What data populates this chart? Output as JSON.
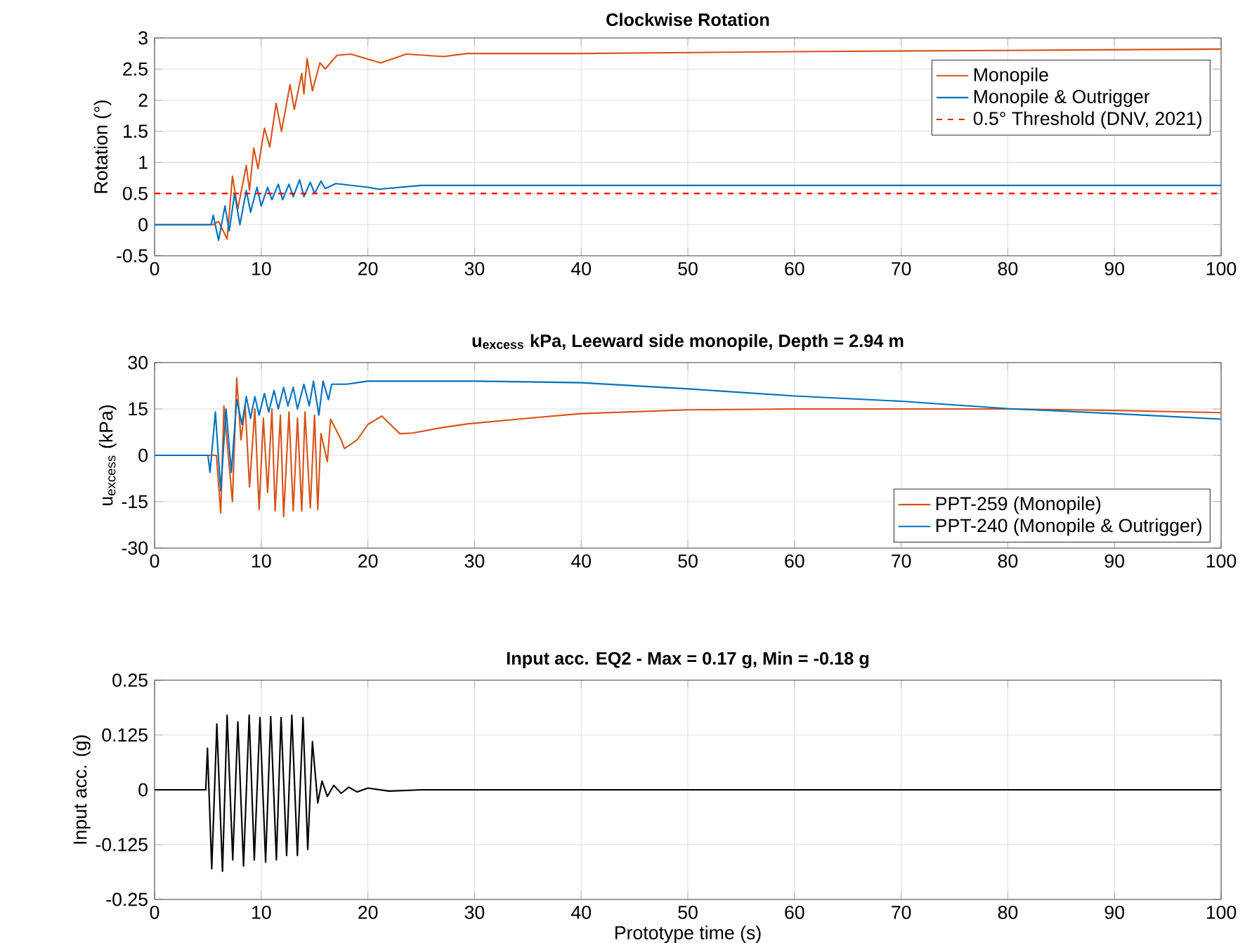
{
  "chart_data": [
    {
      "type": "line",
      "title": "Clockwise Rotation",
      "ylabel": "Rotation (°)",
      "xlim": [
        0,
        100
      ],
      "ylim": [
        -0.5,
        3
      ],
      "xticks": [
        0,
        10,
        20,
        30,
        40,
        50,
        60,
        70,
        80,
        90,
        100
      ],
      "yticks": [
        -0.5,
        0,
        0.5,
        1,
        1.5,
        2,
        2.5,
        3
      ],
      "grid": true,
      "legend": "top right",
      "series": [
        {
          "name": "Monopile",
          "color": "#d95319",
          "x": [
            0,
            5.5,
            6.0,
            6.8,
            7.3,
            7.8,
            8.6,
            8.9,
            9.3,
            9.7,
            10.3,
            10.8,
            11.4,
            11.9,
            12.7,
            13.1,
            13.8,
            14.0,
            14.3,
            14.8,
            15.5,
            16.0,
            17.1,
            18.4,
            21.2,
            23.6,
            27.1,
            29.3,
            40,
            60,
            80,
            100
          ],
          "values": [
            0,
            0,
            0.05,
            -0.23,
            0.78,
            0.25,
            0.95,
            0.55,
            1.23,
            0.9,
            1.55,
            1.25,
            1.95,
            1.5,
            2.25,
            1.85,
            2.43,
            2.1,
            2.67,
            2.15,
            2.6,
            2.5,
            2.72,
            2.74,
            2.6,
            2.74,
            2.7,
            2.75,
            2.75,
            2.78,
            2.8,
            2.82
          ]
        },
        {
          "name": "Monopile & Outrigger",
          "color": "#0072bd",
          "x": [
            0,
            5.3,
            5.5,
            6.0,
            6.6,
            7.0,
            7.5,
            8.0,
            8.6,
            9.0,
            9.6,
            10.0,
            10.6,
            11.0,
            11.6,
            12.0,
            12.6,
            13.0,
            13.6,
            14.0,
            14.6,
            15.0,
            15.6,
            16.0,
            17.0,
            20,
            21,
            25,
            100
          ],
          "values": [
            0,
            0,
            0.15,
            -0.25,
            0.3,
            -0.1,
            0.5,
            0.0,
            0.55,
            0.2,
            0.6,
            0.3,
            0.6,
            0.4,
            0.65,
            0.4,
            0.65,
            0.45,
            0.72,
            0.45,
            0.68,
            0.5,
            0.7,
            0.58,
            0.66,
            0.6,
            0.57,
            0.63,
            0.63
          ]
        }
      ],
      "ref_lines": [
        {
          "axis": "y",
          "value": 0.5,
          "label": "0.5° Threshold (DNV, 2021)",
          "color": "#ff0000",
          "line_style": "dashed"
        }
      ]
    },
    {
      "type": "line",
      "title": "**u$_{excess}$** kPa, Leeward side monopile, Depth = 2.94 m",
      "ylabel": "u$_{excess}$ (kPa)",
      "xlim": [
        0,
        100
      ],
      "ylim": [
        -30,
        30
      ],
      "xticks": [
        0,
        10,
        20,
        30,
        40,
        50,
        60,
        70,
        80,
        90,
        100
      ],
      "yticks": [
        -30,
        -15,
        0,
        15,
        30
      ],
      "grid": true,
      "legend": "bottom right",
      "series": [
        {
          "name": "PPT-259 (Monopile)",
          "color": "#d95319",
          "x": [
            0,
            5.8,
            6.2,
            6.5,
            7.3,
            7.7,
            8.1,
            8.5,
            8.9,
            9.4,
            9.8,
            10.2,
            10.6,
            11.0,
            11.3,
            11.8,
            12.1,
            12.6,
            13.0,
            13.4,
            13.8,
            14.1,
            14.6,
            15.0,
            15.3,
            15.6,
            16.2,
            16.5,
            17.5,
            17.8,
            19,
            20,
            21.3,
            23,
            24.2,
            27,
            29.4,
            35,
            40,
            50,
            60,
            70,
            80,
            90,
            100
          ],
          "values": [
            0,
            0,
            -18.7,
            16,
            -15,
            25,
            5,
            16,
            -10.3,
            15,
            -17.5,
            12,
            -12,
            15,
            -18,
            13,
            -19.8,
            14,
            -18,
            12,
            -18,
            14,
            -17,
            13,
            -17.5,
            7,
            -2,
            11.7,
            5,
            2.2,
            5,
            10,
            12.7,
            7,
            7.2,
            9,
            10.2,
            12,
            13.5,
            14.7,
            15,
            15,
            15,
            14.5,
            13.8
          ]
        },
        {
          "name": "PPT-240 (Monopile & Outrigger)",
          "color": "#0072bd",
          "x": [
            0,
            5.0,
            5.2,
            5.7,
            6.2,
            6.7,
            7.2,
            7.7,
            8.2,
            8.6,
            9.0,
            9.4,
            9.8,
            10.3,
            10.7,
            11.2,
            11.6,
            12.1,
            12.5,
            13.0,
            13.4,
            14.0,
            14.5,
            14.9,
            15.4,
            15.8,
            16.3,
            16.6,
            18,
            20,
            30,
            40,
            50,
            60,
            70,
            80,
            90,
            100
          ],
          "values": [
            0,
            0,
            -5.5,
            14,
            -11.5,
            15,
            -5.5,
            18,
            10,
            19,
            12,
            19,
            13,
            20,
            14,
            21,
            15,
            22,
            16,
            22,
            15,
            23,
            16,
            24,
            13,
            24,
            18,
            23,
            23,
            24,
            24,
            23.5,
            21.5,
            19.2,
            17.5,
            15.1,
            13.5,
            11.7
          ]
        }
      ]
    },
    {
      "type": "line",
      "title": "Input acc. EQ2 - Max = 0.17 g, Min = -0.18 g",
      "xlabel": "Prototype time (s)",
      "ylabel": "Input acc. (g)",
      "xlim": [
        0,
        100
      ],
      "ylim": [
        -0.25,
        0.25
      ],
      "xticks": [
        0,
        10,
        20,
        30,
        40,
        50,
        60,
        70,
        80,
        90,
        100
      ],
      "yticks": [
        -0.25,
        -0.125,
        0,
        0.125,
        0.25
      ],
      "grid": true,
      "series": [
        {
          "color": "#000000",
          "x": [
            0,
            4.8,
            4.96,
            5.36,
            5.84,
            6.37,
            6.8,
            7.33,
            7.81,
            8.34,
            8.87,
            9.35,
            9.88,
            10.41,
            10.89,
            11.42,
            11.86,
            12.38,
            12.87,
            13.39,
            13.92,
            14.36,
            14.8,
            15.3,
            15.7,
            16.2,
            16.8,
            17.5,
            18.2,
            19,
            20,
            22,
            25,
            100
          ],
          "values": [
            0,
            0,
            0.095,
            -0.18,
            0.15,
            -0.186,
            0.17,
            -0.16,
            0.155,
            -0.174,
            0.17,
            -0.16,
            0.165,
            -0.165,
            0.167,
            -0.16,
            0.165,
            -0.15,
            0.17,
            -0.15,
            0.165,
            -0.136,
            0.11,
            -0.03,
            0.02,
            -0.015,
            0.01,
            -0.008,
            0.006,
            -0.005,
            0.004,
            -0.003,
            0,
            0
          ]
        }
      ]
    }
  ]
}
